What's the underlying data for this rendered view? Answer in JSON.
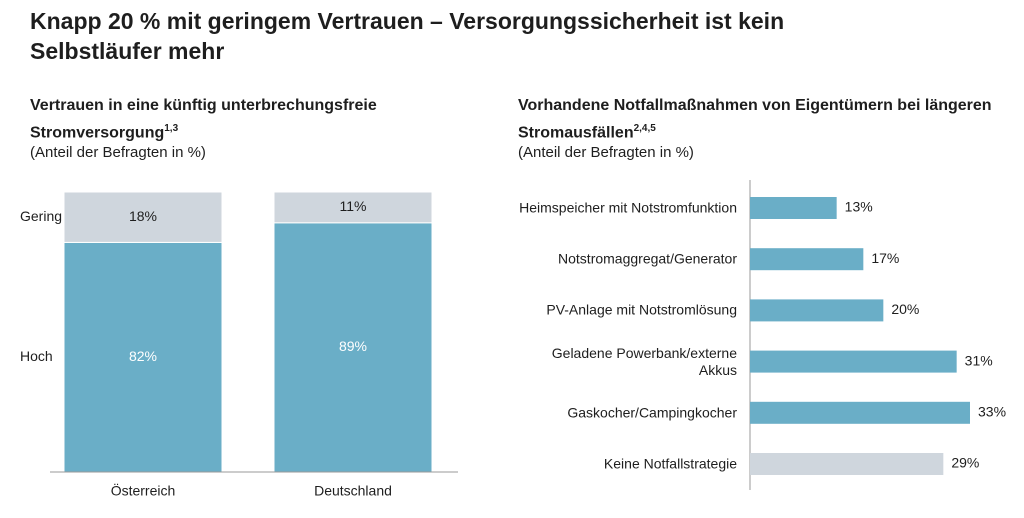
{
  "title": "Knapp 20 % mit geringem Vertrauen – Versorgungssicherheit ist kein Selbstläufer mehr",
  "chart_data": [
    {
      "type": "stacked_bar",
      "title": "Vertrauen in eine künftig unterbrechungsfreie Stromversorgung",
      "title_note": "1,3",
      "subtitle": "(Anteil der Befragten in %)",
      "categories": [
        "Österreich",
        "Deutschland"
      ],
      "series": [
        {
          "name": "Hoch",
          "color": "#6aaec7",
          "values": [
            82,
            89
          ],
          "value_labels": [
            "82%",
            "89%"
          ]
        },
        {
          "name": "Gering",
          "color": "#cfd6dd",
          "values": [
            18,
            11
          ],
          "value_labels": [
            "18%",
            "11%"
          ]
        }
      ]
    },
    {
      "type": "hbar",
      "title": "Vorhandene Notfallmaßnahmen von Eigentümern bei längeren Stromausfällen",
      "title_note": "2,4,5",
      "subtitle": "(Anteil der Befragten in %)",
      "categories": [
        "Heimspeicher mit Notstromfunktion",
        "Notstromaggregat/Generator",
        "PV-Anlage mit Notstromlösung",
        "Geladene Powerbank/externe Akkus",
        "Gaskocher/Campingkocher",
        "Keine Notfallstrategie"
      ],
      "values": [
        13,
        17,
        20,
        31,
        33,
        29
      ],
      "value_labels": [
        "13%",
        "17%",
        "20%",
        "31%",
        "33%",
        "29%"
      ],
      "colors": [
        "#6aaec7",
        "#6aaec7",
        "#6aaec7",
        "#6aaec7",
        "#6aaec7",
        "#cfd6dd"
      ]
    }
  ]
}
